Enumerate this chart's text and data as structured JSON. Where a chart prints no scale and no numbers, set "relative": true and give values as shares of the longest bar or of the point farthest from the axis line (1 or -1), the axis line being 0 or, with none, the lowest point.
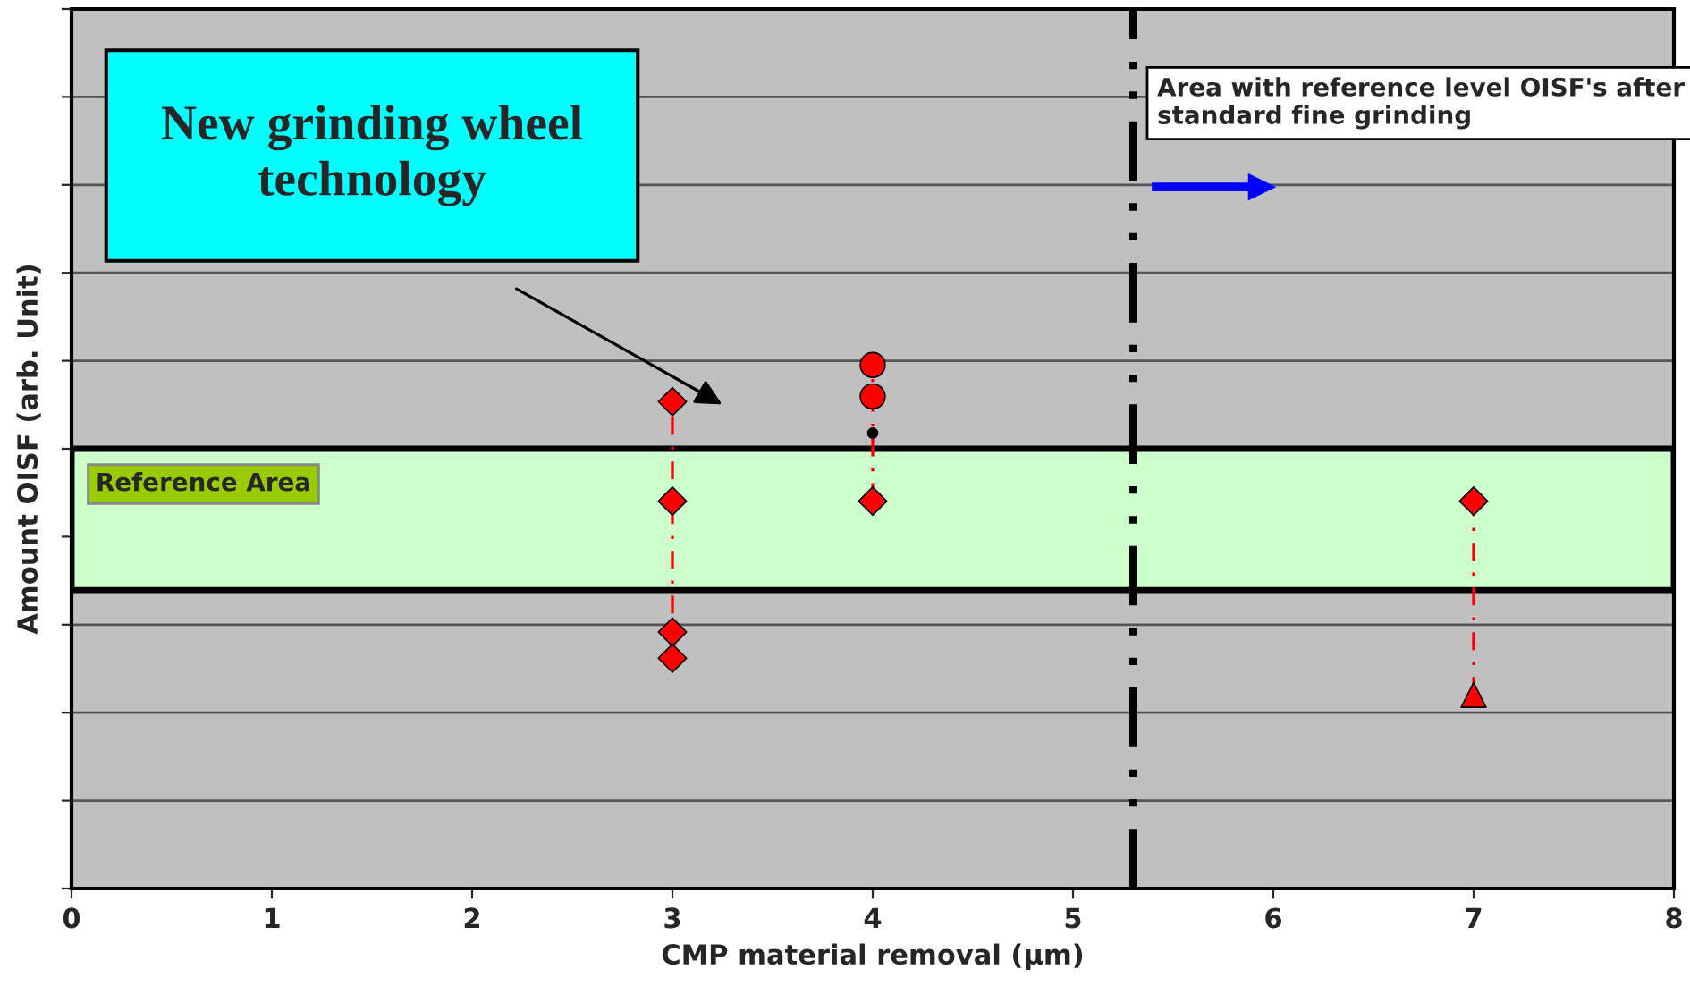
{
  "chart_data": {
    "type": "scatter",
    "relative": true,
    "xlabel": "CMP material removal (µm)",
    "ylabel": "Amount OISF (arb. Unit)",
    "xlim": [
      0,
      8
    ],
    "xticks": [
      0,
      1,
      2,
      3,
      4,
      5,
      6,
      7,
      8
    ],
    "grid": "y",
    "series": [
      {
        "color": "#ff0000",
        "marker": "diamond",
        "values": [
          0.74,
          0.74,
          0.74,
          0.49
        ],
        "x": [
          3,
          4,
          7,
          3
        ]
      },
      {
        "color": "#ff0000",
        "marker": "diamond",
        "values": [
          0.93,
          0.44
        ],
        "x": [
          3,
          3
        ]
      },
      {
        "color": "#ff0000",
        "marker": "circle",
        "values": [
          1,
          0.94
        ],
        "x": [
          4,
          4
        ]
      },
      {
        "color": "#000000",
        "marker": "circle",
        "values": [
          0.87
        ],
        "x": [
          4
        ]
      },
      {
        "color": "#ff0000",
        "marker": "triangle",
        "values": [
          0.37
        ],
        "x": [
          7
        ]
      }
    ],
    "ref_lines": [
      {
        "axis": "x",
        "value": 5.3,
        "color": "#000000",
        "line_style": "dashdot"
      }
    ],
    "bands": [
      {
        "axis": "y",
        "from": 0.57,
        "to": 0.84,
        "label": "Reference Area",
        "color": "#ccffcc"
      }
    ],
    "annotations": [
      "New grinding wheel technology",
      "Area with reference level OISF's after standard fine grinding"
    ]
  }
}
